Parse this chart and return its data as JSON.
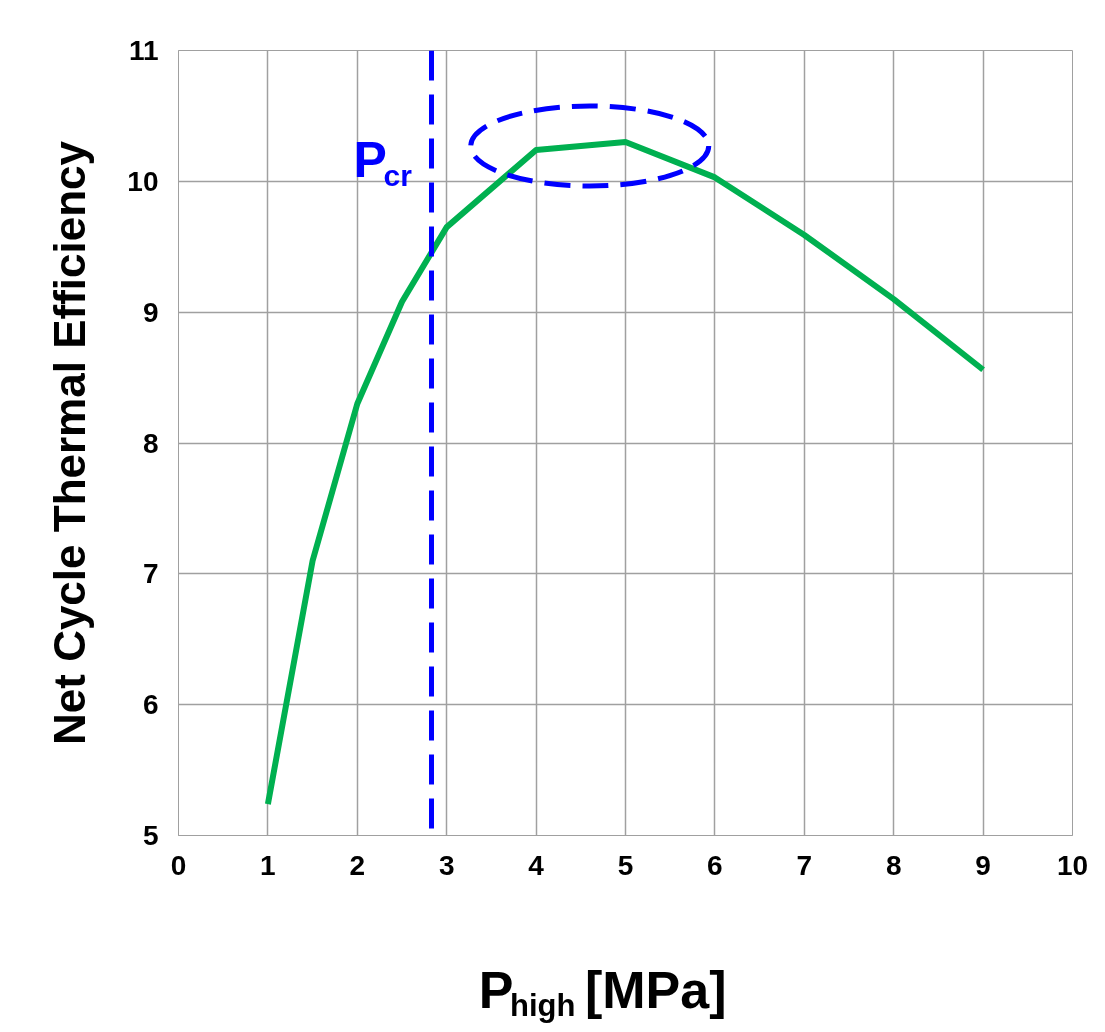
{
  "chart_data": {
    "type": "line",
    "xlabel": "P$_{high}$ [MPa]",
    "ylabel": "Net Cycle Thermal Efficiency",
    "x": [
      1,
      1.5,
      2,
      2.5,
      3,
      4,
      5,
      6,
      7,
      8,
      9
    ],
    "series": [
      {
        "color": "#00b050",
        "values": [
          5.24,
          7.1,
          8.3,
          9.08,
          9.65,
          10.24,
          10.3,
          10.03,
          9.59,
          9.1,
          8.56
        ]
      }
    ],
    "xlim": [
      0,
      10
    ],
    "ylim": [
      5,
      11
    ],
    "xticks": [
      0,
      1,
      2,
      3,
      4,
      5,
      6,
      7,
      8,
      9,
      10
    ],
    "yticks": [
      5,
      6,
      7,
      8,
      9,
      10,
      11
    ],
    "ref_lines": [
      {
        "axis": "x",
        "value": 2.83,
        "label": "P$_{cr}$",
        "color": "#0000ff",
        "line_style": "dashed"
      }
    ],
    "grid": true,
    "marker": "none",
    "line_style": "solid"
  }
}
